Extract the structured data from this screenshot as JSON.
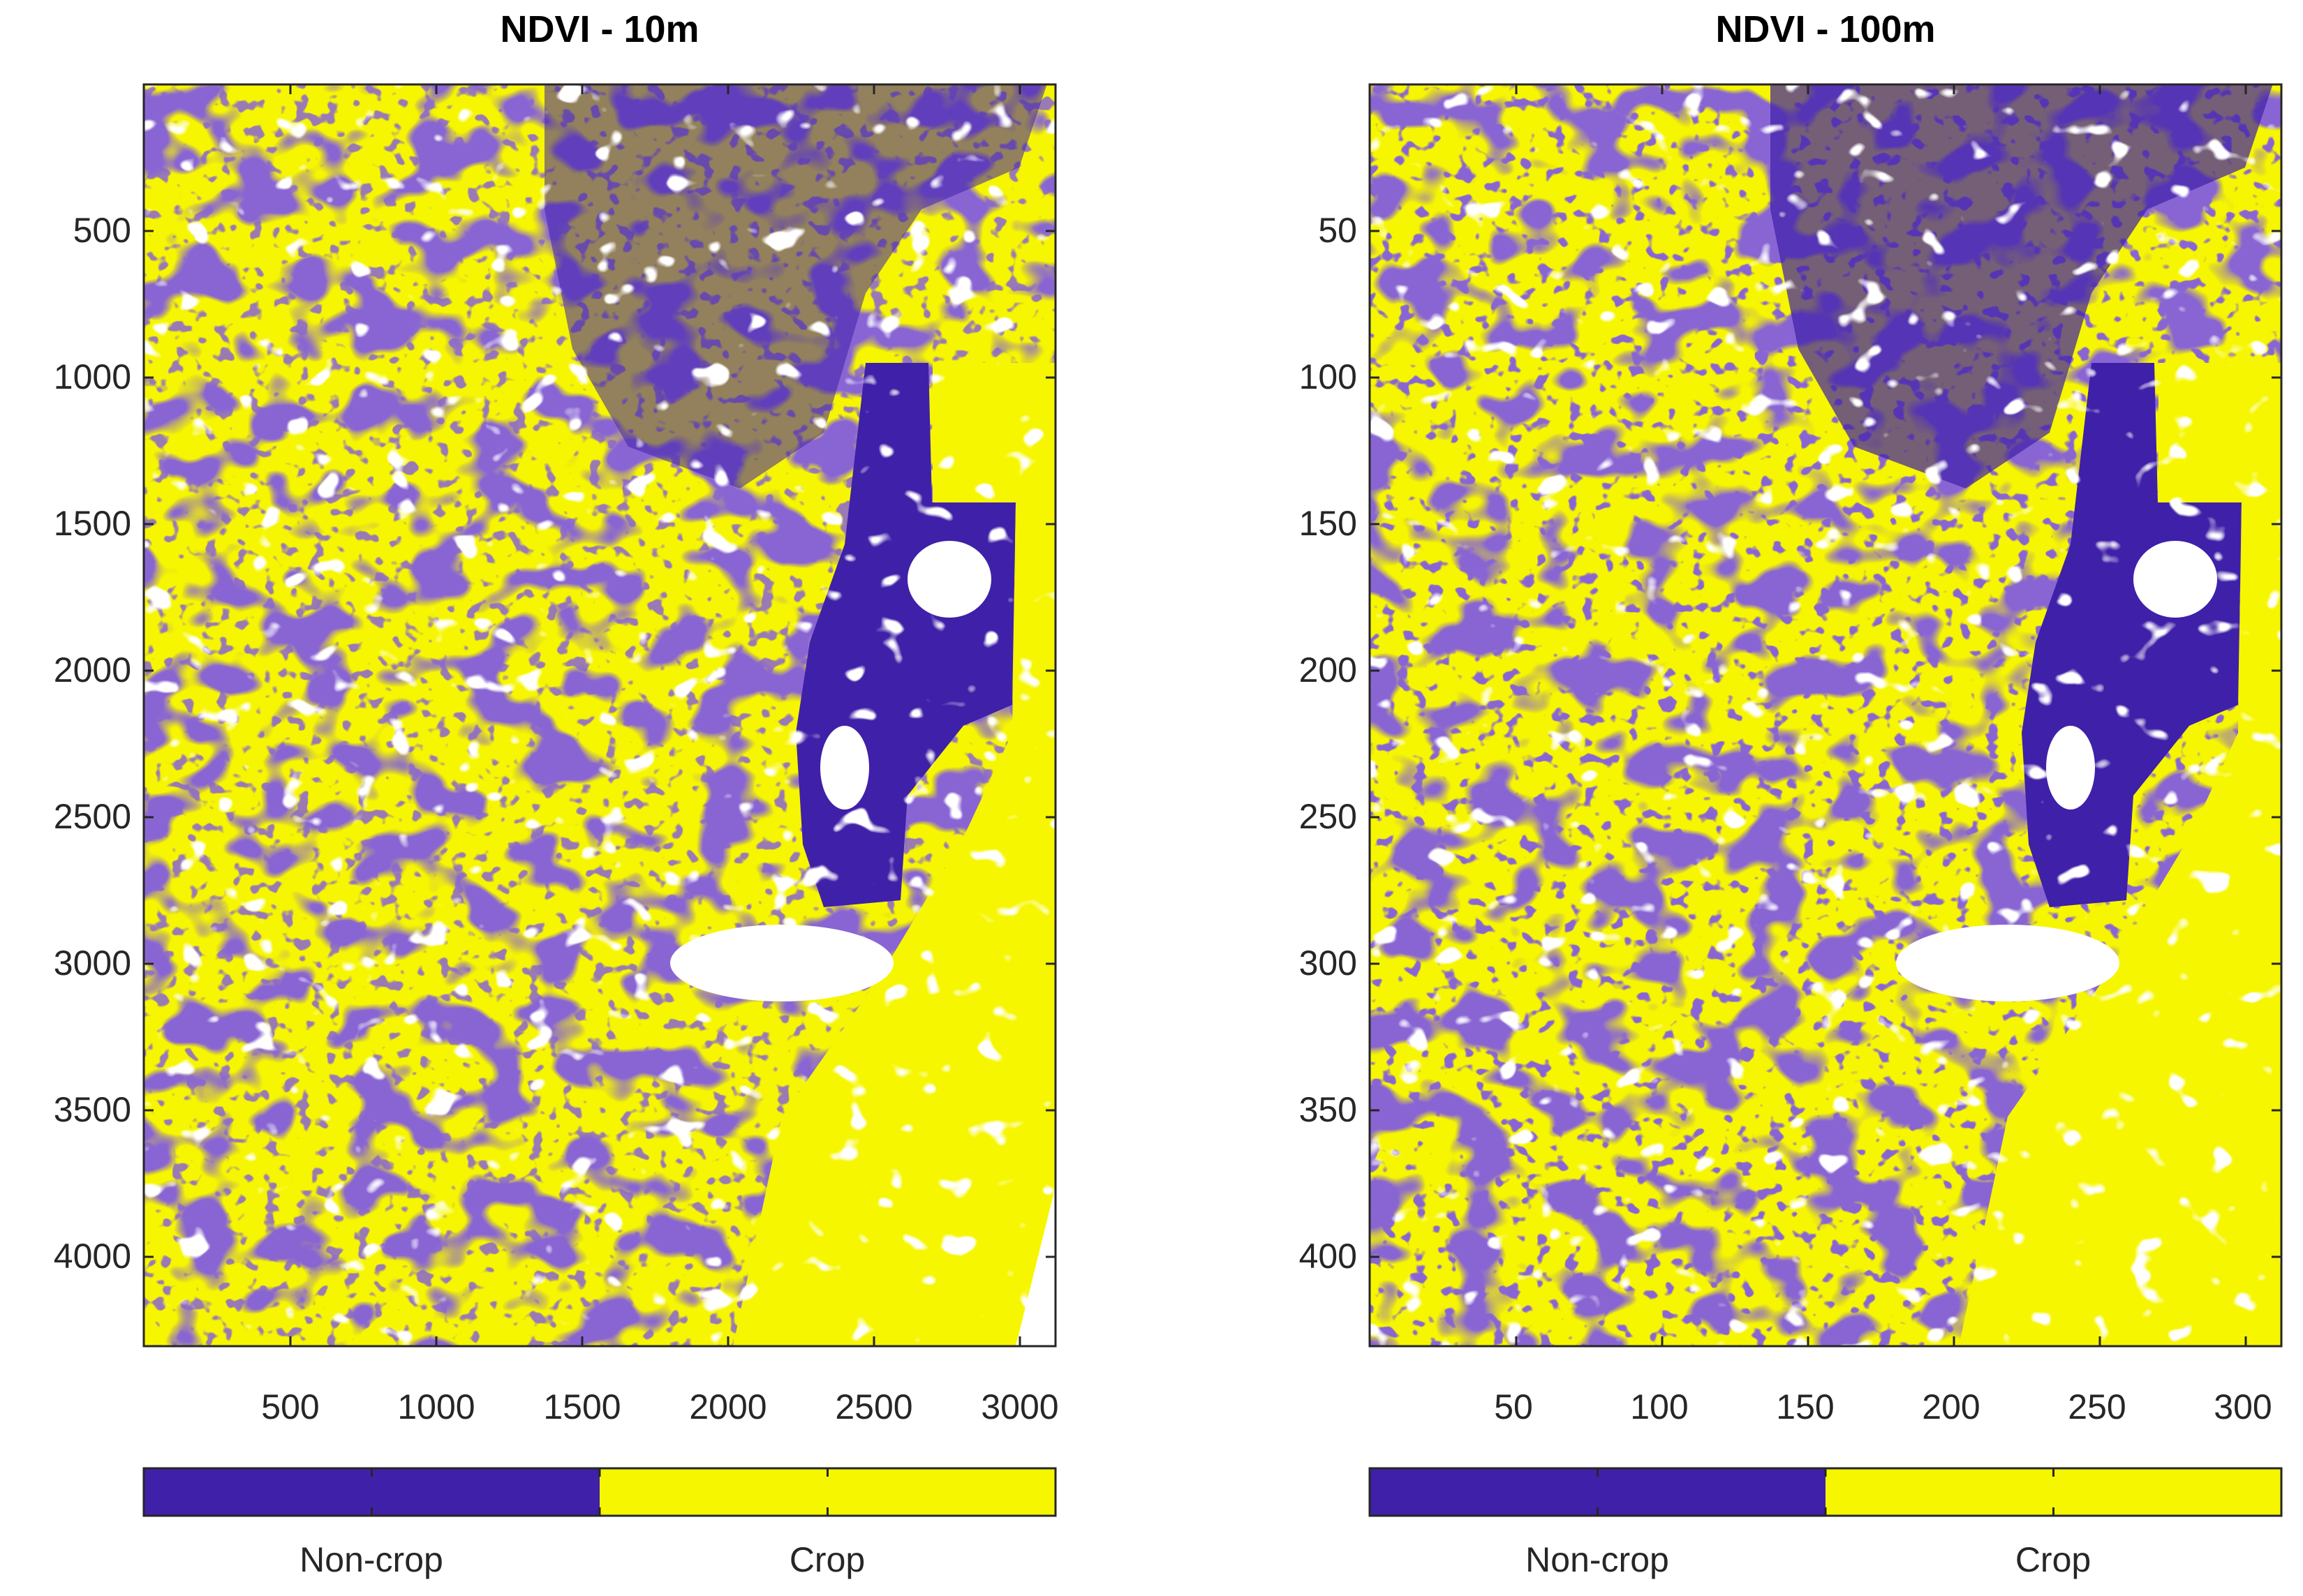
{
  "panels": [
    {
      "title": "NDVI - 10m",
      "y_ticks": [
        "500",
        "1000",
        "1500",
        "2000",
        "2500",
        "3000",
        "3500",
        "4000"
      ],
      "x_ticks": [
        "500",
        "1000",
        "1500",
        "2000",
        "2500",
        "3000"
      ],
      "colorbar": {
        "labels": [
          "Non-crop",
          "Crop"
        ]
      }
    },
    {
      "title": "NDVI - 100m",
      "y_ticks": [
        "50",
        "100",
        "150",
        "200",
        "250",
        "300",
        "350",
        "400"
      ],
      "x_ticks": [
        "50",
        "100",
        "150",
        "200",
        "250",
        "300"
      ],
      "colorbar": {
        "labels": [
          "Non-crop",
          "Crop"
        ]
      }
    }
  ],
  "colors": {
    "non_crop": "#3f20a8",
    "crop": "#f6f600",
    "no_data": "#ffffff",
    "axis": "#262626"
  }
}
